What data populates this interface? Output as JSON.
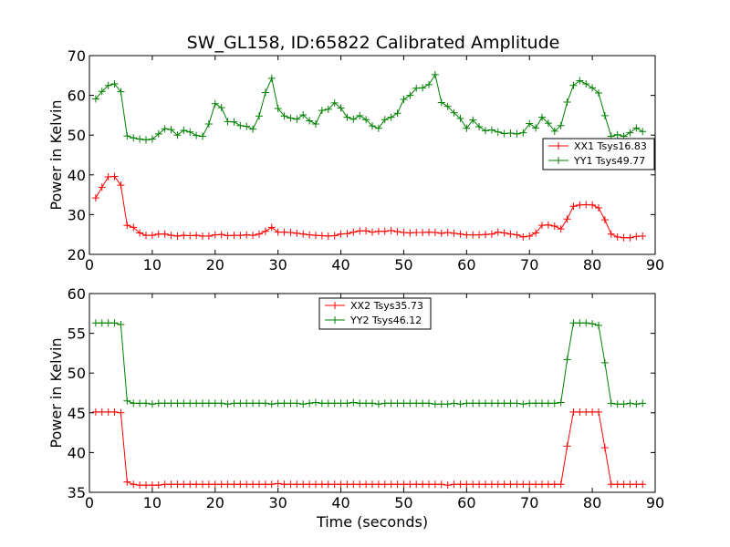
{
  "chart_data": [
    {
      "type": "line",
      "title": "SW_GL158, ID:65822 Calibrated Amplitude",
      "xlabel": "",
      "ylabel": "Power in Kelvin",
      "xlim": [
        0,
        90
      ],
      "ylim": [
        20,
        70
      ],
      "xticks": [
        "0",
        "10",
        "20",
        "30",
        "40",
        "50",
        "60",
        "70",
        "80",
        "90"
      ],
      "yticks": [
        "20",
        "30",
        "40",
        "50",
        "60",
        "70"
      ],
      "legend_position": "center-right",
      "grid": false,
      "x": [
        1,
        2,
        3,
        4,
        5,
        6,
        7,
        8,
        9,
        10,
        11,
        12,
        13,
        14,
        15,
        16,
        17,
        18,
        19,
        20,
        21,
        22,
        23,
        24,
        25,
        26,
        27,
        28,
        29,
        30,
        31,
        32,
        33,
        34,
        35,
        36,
        37,
        38,
        39,
        40,
        41,
        42,
        43,
        44,
        45,
        46,
        47,
        48,
        49,
        50,
        51,
        52,
        53,
        54,
        55,
        56,
        57,
        58,
        59,
        60,
        61,
        62,
        63,
        64,
        65,
        66,
        67,
        68,
        69,
        70,
        71,
        72,
        73,
        74,
        75,
        76,
        77,
        78,
        79,
        80,
        81,
        82,
        83,
        84,
        85,
        86,
        87,
        88
      ],
      "series": [
        {
          "name": "XX1 Tsys16.83",
          "color": "#ff0000",
          "values": [
            34.2,
            36.9,
            39.5,
            39.6,
            37.4,
            27.3,
            26.8,
            25.4,
            24.8,
            24.8,
            25.1,
            25.1,
            24.8,
            24.6,
            24.8,
            24.7,
            24.8,
            24.6,
            24.6,
            24.9,
            25.0,
            24.7,
            24.8,
            24.8,
            24.9,
            24.8,
            25.1,
            25.8,
            26.8,
            25.6,
            25.6,
            25.5,
            25.3,
            25.1,
            24.9,
            24.8,
            24.7,
            24.6,
            24.7,
            25.1,
            25.2,
            25.6,
            25.9,
            25.9,
            25.6,
            25.8,
            25.8,
            26.0,
            25.7,
            25.5,
            25.4,
            25.5,
            25.5,
            25.6,
            25.5,
            25.3,
            25.5,
            25.3,
            25.1,
            24.9,
            24.9,
            24.9,
            25.0,
            25.1,
            25.6,
            25.4,
            25.1,
            24.9,
            24.4,
            24.6,
            25.4,
            27.3,
            27.4,
            27.1,
            26.4,
            28.9,
            32.1,
            32.4,
            32.5,
            32.4,
            31.7,
            28.7,
            25.1,
            24.4,
            24.2,
            24.2,
            24.5,
            24.6
          ]
        },
        {
          "name": "YY1 Tsys49.77",
          "color": "#008000",
          "values": [
            59.1,
            61.0,
            62.5,
            62.9,
            60.9,
            49.8,
            49.3,
            49.0,
            48.8,
            49.0,
            50.3,
            51.6,
            51.4,
            50.0,
            51.2,
            50.8,
            49.9,
            49.7,
            52.8,
            57.9,
            56.9,
            53.4,
            53.3,
            52.4,
            52.2,
            51.5,
            54.8,
            60.7,
            64.3,
            56.7,
            54.8,
            54.3,
            54.0,
            55.1,
            53.6,
            52.8,
            56.2,
            56.5,
            58.1,
            56.8,
            54.5,
            54.0,
            54.9,
            53.9,
            52.3,
            51.7,
            53.9,
            54.5,
            55.5,
            59.0,
            60.0,
            61.8,
            61.9,
            62.7,
            65.2,
            58.2,
            57.2,
            55.6,
            54.2,
            51.7,
            53.8,
            52.1,
            51.1,
            51.3,
            50.8,
            50.4,
            50.5,
            50.3,
            50.6,
            52.9,
            51.8,
            54.5,
            53.0,
            51.0,
            52.4,
            58.3,
            62.5,
            63.7,
            62.9,
            61.9,
            60.6,
            54.9,
            49.7,
            50.1,
            49.7,
            50.6,
            51.8,
            50.9
          ]
        }
      ]
    },
    {
      "type": "line",
      "title": "",
      "xlabel": "Time (seconds)",
      "ylabel": "Power in Kelvin",
      "xlim": [
        0,
        90
      ],
      "ylim": [
        35,
        60
      ],
      "xticks": [
        "0",
        "10",
        "20",
        "30",
        "40",
        "50",
        "60",
        "70",
        "80",
        "90"
      ],
      "yticks": [
        "35",
        "40",
        "45",
        "50",
        "55",
        "60"
      ],
      "legend_position": "top-center",
      "grid": false,
      "x": [
        1,
        2,
        3,
        4,
        5,
        6,
        7,
        8,
        9,
        10,
        11,
        12,
        13,
        14,
        15,
        16,
        17,
        18,
        19,
        20,
        21,
        22,
        23,
        24,
        25,
        26,
        27,
        28,
        29,
        30,
        31,
        32,
        33,
        34,
        35,
        36,
        37,
        38,
        39,
        40,
        41,
        42,
        43,
        44,
        45,
        46,
        47,
        48,
        49,
        50,
        51,
        52,
        53,
        54,
        55,
        56,
        57,
        58,
        59,
        60,
        61,
        62,
        63,
        64,
        65,
        66,
        67,
        68,
        69,
        70,
        71,
        72,
        73,
        74,
        75,
        76,
        77,
        78,
        79,
        80,
        81,
        82,
        83,
        84,
        85,
        86,
        87,
        88
      ],
      "series": [
        {
          "name": "XX2 Tsys35.73",
          "color": "#ff0000",
          "values": [
            45.1,
            45.1,
            45.1,
            45.1,
            45.0,
            36.3,
            36.0,
            35.9,
            35.9,
            35.9,
            35.9,
            36.0,
            36.0,
            36.0,
            36.0,
            36.0,
            36.0,
            36.0,
            36.0,
            36.0,
            36.0,
            36.0,
            36.0,
            36.0,
            36.0,
            36.0,
            36.0,
            36.0,
            36.0,
            36.1,
            36.0,
            36.0,
            36.0,
            36.0,
            36.0,
            36.0,
            36.0,
            36.0,
            36.0,
            36.0,
            36.0,
            36.0,
            36.0,
            36.0,
            36.0,
            36.0,
            36.0,
            36.0,
            36.0,
            36.0,
            36.0,
            36.0,
            36.0,
            36.0,
            36.0,
            36.0,
            35.9,
            36.0,
            36.0,
            36.0,
            36.0,
            36.0,
            36.0,
            36.0,
            36.0,
            36.0,
            36.0,
            36.0,
            36.0,
            36.0,
            36.0,
            36.0,
            36.0,
            36.0,
            36.0,
            40.8,
            45.1,
            45.1,
            45.1,
            45.1,
            45.1,
            40.6,
            36.0,
            36.0,
            36.0,
            36.0,
            36.0,
            36.0
          ]
        },
        {
          "name": "YY2 Tsys46.12",
          "color": "#008000",
          "values": [
            56.3,
            56.3,
            56.3,
            56.3,
            56.1,
            46.5,
            46.2,
            46.2,
            46.2,
            46.1,
            46.2,
            46.2,
            46.2,
            46.2,
            46.2,
            46.2,
            46.2,
            46.2,
            46.2,
            46.2,
            46.2,
            46.1,
            46.2,
            46.2,
            46.2,
            46.2,
            46.2,
            46.2,
            46.1,
            46.2,
            46.2,
            46.2,
            46.2,
            46.1,
            46.2,
            46.3,
            46.2,
            46.2,
            46.2,
            46.2,
            46.2,
            46.3,
            46.2,
            46.2,
            46.2,
            46.1,
            46.2,
            46.2,
            46.2,
            46.2,
            46.2,
            46.2,
            46.2,
            46.2,
            46.1,
            46.1,
            46.1,
            46.2,
            46.1,
            46.2,
            46.2,
            46.2,
            46.2,
            46.2,
            46.2,
            46.2,
            46.2,
            46.2,
            46.1,
            46.2,
            46.2,
            46.2,
            46.2,
            46.2,
            46.3,
            51.7,
            56.3,
            56.3,
            56.3,
            56.2,
            56.0,
            51.3,
            46.2,
            46.1,
            46.1,
            46.2,
            46.1,
            46.2
          ]
        }
      ]
    }
  ]
}
